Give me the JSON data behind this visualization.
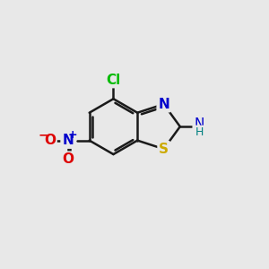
{
  "bg_color": "#e8e8e8",
  "bond_color": "#1a1a1a",
  "bond_width": 1.8,
  "atom_colors": {
    "S": "#ccaa00",
    "N": "#0000cc",
    "Cl": "#00bb00",
    "O": "#dd0000",
    "N_amino": "#0000cc",
    "H": "#008080",
    "N_nitro": "#0000cc"
  },
  "font_size_atoms": 11,
  "font_size_small": 8,
  "scale": 1.0
}
